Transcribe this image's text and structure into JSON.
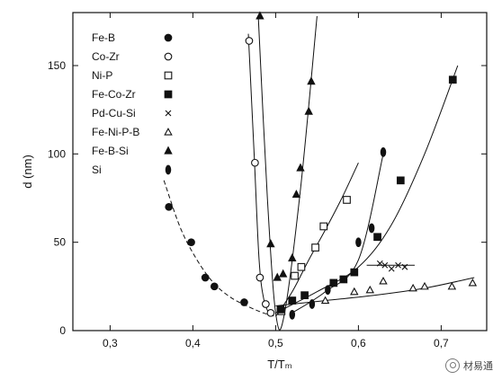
{
  "chart_data": {
    "type": "scatter",
    "xlabel": "T/Tₘ",
    "ylabel": "d (nm)",
    "xlim": [
      0.255,
      0.755
    ],
    "ylim": [
      0,
      180
    ],
    "xticks": [
      0.3,
      0.4,
      0.5,
      0.6,
      0.7
    ],
    "xtick_labels": [
      "0,3",
      "0,4",
      "0,5",
      "0,6",
      "0,7"
    ],
    "yticks": [
      0,
      50,
      100,
      150
    ],
    "ytick_labels": [
      "0",
      "50",
      "100",
      "150"
    ],
    "grid": false,
    "legend_position": "top-left",
    "series": [
      {
        "name": "Fe-B",
        "marker": "filled-circle",
        "x": [
          0.371,
          0.398,
          0.415,
          0.426,
          0.462
        ],
        "y": [
          70,
          50,
          30,
          25,
          16
        ],
        "curve_x": [
          0.365,
          0.385,
          0.405,
          0.425,
          0.445,
          0.465,
          0.485,
          0.5
        ],
        "curve_y": [
          85,
          58,
          40,
          27,
          19,
          14,
          10,
          8
        ]
      },
      {
        "name": "Co-Zr",
        "marker": "open-circle",
        "x": [
          0.468,
          0.475,
          0.481,
          0.488,
          0.494
        ],
        "y": [
          164,
          95,
          30,
          15,
          10
        ],
        "curve_x": [
          0.467,
          0.474,
          0.48,
          0.486,
          0.494
        ],
        "curve_y": [
          168,
          100,
          40,
          17,
          8
        ]
      },
      {
        "name": "Ni-P",
        "marker": "open-square",
        "x": [
          0.507,
          0.523,
          0.531,
          0.548,
          0.558,
          0.586
        ],
        "y": [
          11,
          31,
          36,
          47,
          59,
          74
        ],
        "curve_x": [
          0.5,
          0.52,
          0.54,
          0.56,
          0.58,
          0.6
        ],
        "curve_y": [
          8,
          22,
          40,
          57,
          75,
          95
        ]
      },
      {
        "name": "Fe-Co-Zr",
        "marker": "filled-square",
        "x": [
          0.506,
          0.52,
          0.535,
          0.57,
          0.582,
          0.595,
          0.623,
          0.651,
          0.714
        ],
        "y": [
          12,
          17,
          20,
          27,
          29,
          33,
          53,
          85,
          142
        ],
        "curve_x": [
          0.5,
          0.55,
          0.6,
          0.64,
          0.68,
          0.72
        ],
        "curve_y": [
          10,
          22,
          36,
          60,
          100,
          150
        ]
      },
      {
        "name": "Pd-Cu-Si",
        "marker": "x",
        "x": [
          0.626,
          0.632,
          0.64,
          0.648,
          0.656
        ],
        "y": [
          38,
          37,
          35,
          37,
          36
        ],
        "curve_x": [
          0.61,
          0.668
        ],
        "curve_y": [
          37,
          37
        ]
      },
      {
        "name": "Fe-Ni-P-B",
        "marker": "open-triangle",
        "x": [
          0.56,
          0.595,
          0.614,
          0.63,
          0.666,
          0.68,
          0.713,
          0.738
        ],
        "y": [
          17,
          22,
          23,
          28,
          24,
          25,
          25,
          27
        ],
        "curve_x": [
          0.5,
          0.56,
          0.62,
          0.68,
          0.74
        ],
        "curve_y": [
          14,
          17,
          20,
          24,
          30
        ]
      },
      {
        "name": "Fe-B-Si",
        "marker": "filled-triangle",
        "x": [
          0.481,
          0.494,
          0.502,
          0.509,
          0.52,
          0.525,
          0.53,
          0.54,
          0.543
        ],
        "y": [
          178,
          49,
          30,
          32,
          41,
          77,
          92,
          124,
          141
        ],
        "curve_x": [
          0.479,
          0.49,
          0.5,
          0.51,
          0.53,
          0.55
        ],
        "curve_y": [
          178,
          75,
          10,
          8,
          80,
          178
        ]
      },
      {
        "name": "Si",
        "marker": "filled-ellipse",
        "x": [
          0.52,
          0.544,
          0.563,
          0.6,
          0.616,
          0.63
        ],
        "y": [
          9,
          15,
          23,
          50,
          58,
          101
        ],
        "curve_x": [
          0.52,
          0.56,
          0.6,
          0.63
        ],
        "curve_y": [
          10,
          22,
          40,
          100
        ]
      }
    ]
  },
  "watermark": {
    "text": "材易通"
  }
}
